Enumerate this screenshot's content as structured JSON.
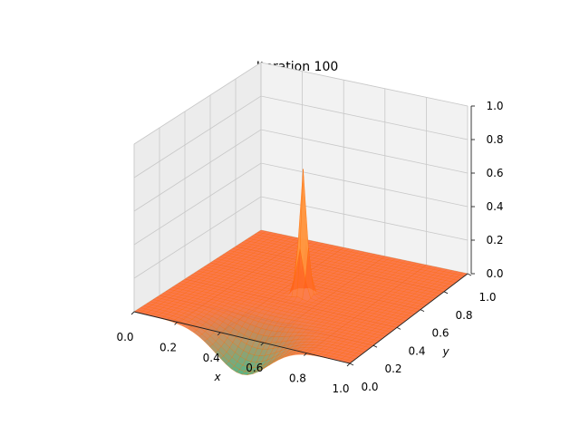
{
  "chart_data": {
    "type": "surface3d",
    "title": "Iteration 100",
    "xlabel": "x",
    "ylabel": "y",
    "zlabel": "",
    "xlim": [
      0.0,
      1.0
    ],
    "ylim": [
      0.0,
      1.0
    ],
    "zlim": [
      0.0,
      1.0
    ],
    "x_ticks": [
      "0.0",
      "0.2",
      "0.4",
      "0.6",
      "0.8",
      "1.0"
    ],
    "y_ticks": [
      "0.0",
      "0.2",
      "0.4",
      "0.6",
      "0.8",
      "1.0"
    ],
    "z_ticks": [
      "0.0",
      "0.2",
      "0.4",
      "0.6",
      "0.8",
      "1.0"
    ],
    "grid": true,
    "colormap": "autumn-to-green",
    "surface": {
      "resolution": 40,
      "baseline": 0.0,
      "peak": {
        "x": 0.5,
        "y": 0.5,
        "height": 0.75
      },
      "depression": {
        "x": 0.5,
        "y": 0.0,
        "depth": -0.22
      }
    },
    "colors": {
      "surface_high": "#ffd966",
      "surface_mid": "#ff5a1f",
      "surface_low": "#2e9e63",
      "edge": "#ff6a00"
    }
  }
}
